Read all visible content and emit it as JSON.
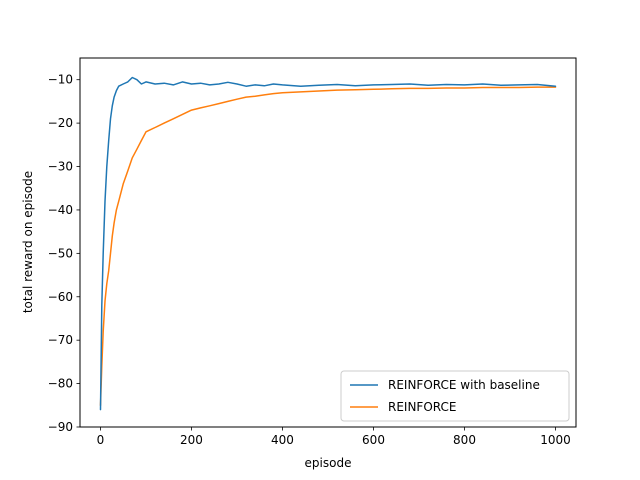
{
  "chart_data": {
    "type": "line",
    "title": "",
    "xlabel": "episode",
    "ylabel": "total reward on episode",
    "xlim": [
      -45,
      1045
    ],
    "ylim": [
      -90,
      -5
    ],
    "x_ticks": [
      0,
      200,
      400,
      600,
      800,
      1000
    ],
    "y_ticks": [
      -90,
      -80,
      -70,
      -60,
      -50,
      -40,
      -30,
      -20,
      -10
    ],
    "grid": false,
    "legend_position": "lower-right",
    "series": [
      {
        "name": "REINFORCE with baseline",
        "color": "#1f77b4",
        "x": [
          0,
          3,
          6,
          10,
          14,
          18,
          22,
          26,
          30,
          35,
          40,
          50,
          60,
          70,
          80,
          90,
          100,
          120,
          140,
          160,
          180,
          200,
          220,
          240,
          260,
          280,
          300,
          320,
          340,
          360,
          380,
          400,
          440,
          480,
          520,
          560,
          600,
          640,
          680,
          720,
          760,
          800,
          840,
          880,
          920,
          960,
          1000
        ],
        "values": [
          -86,
          -62,
          -50,
          -38,
          -30,
          -24,
          -19,
          -16,
          -14,
          -12.5,
          -11.5,
          -11,
          -10.5,
          -9.5,
          -10,
          -11,
          -10.5,
          -11,
          -10.8,
          -11.2,
          -10.5,
          -11,
          -10.8,
          -11.2,
          -11,
          -10.6,
          -11,
          -11.5,
          -11.2,
          -11.4,
          -11,
          -11.2,
          -11.5,
          -11.3,
          -11.1,
          -11.4,
          -11.2,
          -11.1,
          -11,
          -11.3,
          -11.1,
          -11.2,
          -11,
          -11.3,
          -11.2,
          -11.1,
          -11.5
        ]
      },
      {
        "name": "REINFORCE",
        "color": "#ff7f0e",
        "x": [
          0,
          3,
          6,
          10,
          14,
          18,
          22,
          26,
          30,
          35,
          40,
          50,
          60,
          70,
          80,
          90,
          100,
          120,
          140,
          160,
          180,
          200,
          220,
          240,
          260,
          280,
          300,
          320,
          340,
          360,
          380,
          400,
          440,
          480,
          520,
          560,
          600,
          640,
          680,
          720,
          760,
          800,
          840,
          880,
          920,
          960,
          1000
        ],
        "values": [
          -85,
          -76,
          -68,
          -61,
          -57,
          -54,
          -50,
          -46,
          -43,
          -40,
          -38,
          -34,
          -31,
          -28,
          -26,
          -24,
          -22,
          -21,
          -20,
          -19,
          -18,
          -17,
          -16.5,
          -16,
          -15.5,
          -15,
          -14.5,
          -14,
          -13.8,
          -13.5,
          -13.2,
          -13,
          -12.8,
          -12.6,
          -12.4,
          -12.3,
          -12.2,
          -12.1,
          -12,
          -12,
          -11.9,
          -11.9,
          -11.8,
          -11.8,
          -11.8,
          -11.7,
          -11.7
        ]
      }
    ]
  }
}
